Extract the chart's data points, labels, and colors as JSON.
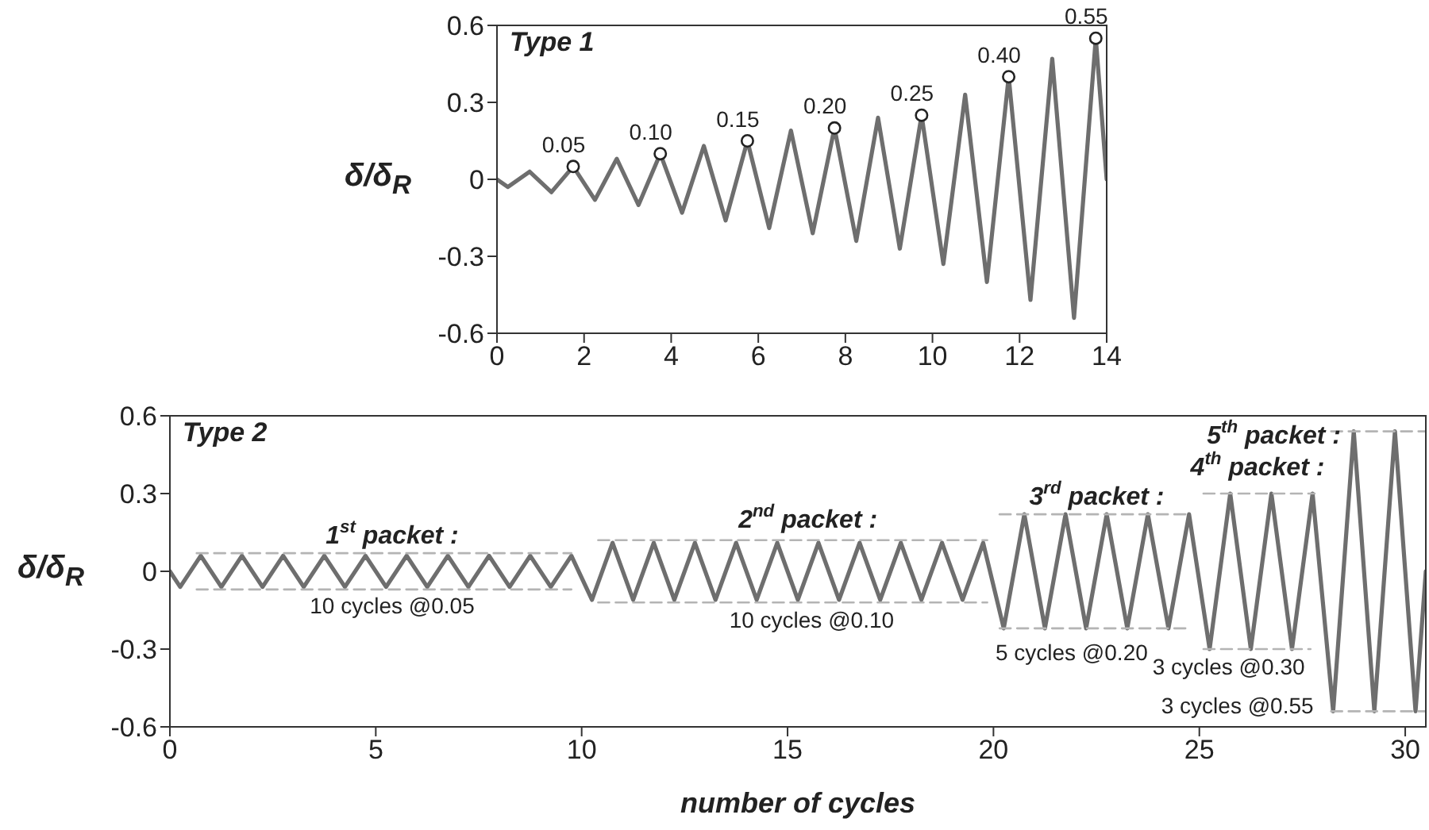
{
  "chart_data": [
    {
      "type": "line",
      "title": "Type 1",
      "ylabel": "δ/δ$_{R}$",
      "xlim": [
        0,
        14
      ],
      "xticks": [
        0,
        2,
        4,
        6,
        8,
        10,
        12,
        14
      ],
      "ylim": [
        -0.6,
        0.6
      ],
      "yticks": [
        -0.6,
        -0.3,
        0,
        0.3,
        0.6
      ],
      "series": [
        {
          "type": "line",
          "color": "#6e6e6e",
          "marker": "none",
          "x": [
            0,
            0.25,
            0.75,
            1.25,
            1.75,
            2.25,
            2.75,
            3.25,
            3.75,
            4.25,
            4.75,
            5.25,
            5.75,
            6.25,
            6.75,
            7.25,
            7.75,
            8.25,
            8.75,
            9.25,
            9.75,
            10.25,
            10.75,
            11.25,
            11.75,
            12.25,
            12.75,
            13.25,
            13.75,
            14
          ],
          "values": [
            0,
            -0.03,
            0.03,
            -0.05,
            0.05,
            -0.08,
            0.08,
            -0.1,
            0.1,
            -0.13,
            0.13,
            -0.16,
            0.15,
            -0.19,
            0.19,
            -0.21,
            0.2,
            -0.24,
            0.24,
            -0.27,
            0.25,
            -0.33,
            0.33,
            -0.4,
            0.4,
            -0.47,
            0.47,
            -0.54,
            0.55,
            0
          ]
        },
        {
          "type": "scatter",
          "color": "#222222",
          "marker": "circle",
          "x": [
            1.75,
            3.75,
            5.75,
            7.75,
            9.75,
            11.75,
            13.75
          ],
          "values": [
            0.05,
            0.1,
            0.15,
            0.2,
            0.25,
            0.4,
            0.55
          ],
          "value_labels": [
            "0.05",
            "0.10",
            "0.15",
            "0.20",
            "0.25",
            "0.40",
            "0.55"
          ]
        }
      ]
    },
    {
      "type": "line",
      "title": "Type 2",
      "xlabel": "number of cycles",
      "ylabel": "δ/δ$_{R}$",
      "xlim": [
        0,
        30.5
      ],
      "xticks": [
        0,
        5,
        10,
        15,
        20,
        25,
        30
      ],
      "ylim": [
        -0.6,
        0.6
      ],
      "yticks": [
        -0.6,
        -0.3,
        0,
        0.3,
        0.6
      ],
      "series": [
        {
          "type": "line",
          "color": "#6e6e6e",
          "marker": "none",
          "x": [
            0,
            0.25,
            0.75,
            1.25,
            1.75,
            2.25,
            2.75,
            3.25,
            3.75,
            4.25,
            4.75,
            5.25,
            5.75,
            6.25,
            6.75,
            7.25,
            7.75,
            8.25,
            8.75,
            9.25,
            9.75,
            10.25,
            10.75,
            11.25,
            11.75,
            12.25,
            12.75,
            13.25,
            13.75,
            14.25,
            14.75,
            15.25,
            15.75,
            16.25,
            16.75,
            17.25,
            17.75,
            18.25,
            18.75,
            19.25,
            19.75,
            20.25,
            20.75,
            21.25,
            21.75,
            22.25,
            22.75,
            23.25,
            23.75,
            24.25,
            24.75,
            25.25,
            25.75,
            26.25,
            26.75,
            27.25,
            27.75,
            28.25,
            28.75,
            29.25,
            29.75,
            30.25,
            30.5
          ],
          "values": [
            0,
            -0.06,
            0.06,
            -0.06,
            0.06,
            -0.06,
            0.06,
            -0.06,
            0.06,
            -0.06,
            0.06,
            -0.06,
            0.06,
            -0.06,
            0.06,
            -0.06,
            0.06,
            -0.06,
            0.06,
            -0.06,
            0.06,
            -0.11,
            0.11,
            -0.11,
            0.11,
            -0.11,
            0.11,
            -0.11,
            0.11,
            -0.11,
            0.11,
            -0.11,
            0.11,
            -0.11,
            0.11,
            -0.11,
            0.11,
            -0.11,
            0.11,
            -0.11,
            0.11,
            -0.22,
            0.22,
            -0.22,
            0.22,
            -0.22,
            0.22,
            -0.22,
            0.22,
            -0.22,
            0.22,
            -0.3,
            0.3,
            -0.3,
            0.3,
            -0.3,
            0.3,
            -0.54,
            0.54,
            -0.54,
            0.54,
            -0.54,
            0
          ]
        },
        {
          "type": "line",
          "color": "#b4b4b4",
          "line_style": "dashed",
          "marker": "none",
          "x": [
            0.65,
            9.75
          ],
          "values": [
            0.07,
            0.07
          ]
        },
        {
          "type": "line",
          "color": "#b4b4b4",
          "line_style": "dashed",
          "marker": "none",
          "x": [
            0.65,
            9.75
          ],
          "values": [
            -0.07,
            -0.07
          ]
        },
        {
          "type": "line",
          "color": "#b4b4b4",
          "line_style": "dashed",
          "marker": "none",
          "x": [
            10.4,
            19.85
          ],
          "values": [
            0.12,
            0.12
          ]
        },
        {
          "type": "line",
          "color": "#b4b4b4",
          "line_style": "dashed",
          "marker": "none",
          "x": [
            10.4,
            19.85
          ],
          "values": [
            -0.12,
            -0.12
          ]
        },
        {
          "type": "line",
          "color": "#b4b4b4",
          "line_style": "dashed",
          "marker": "none",
          "x": [
            20.15,
            24.8
          ],
          "values": [
            0.22,
            0.22
          ]
        },
        {
          "type": "line",
          "color": "#b4b4b4",
          "line_style": "dashed",
          "marker": "none",
          "x": [
            20.15,
            24.7
          ],
          "values": [
            -0.22,
            -0.22
          ]
        },
        {
          "type": "line",
          "color": "#b4b4b4",
          "line_style": "dashed",
          "marker": "none",
          "x": [
            25.1,
            27.8
          ],
          "values": [
            0.3,
            0.3
          ]
        },
        {
          "type": "line",
          "color": "#b4b4b4",
          "line_style": "dashed",
          "marker": "none",
          "x": [
            25.1,
            27.7
          ],
          "values": [
            -0.3,
            -0.3
          ]
        },
        {
          "type": "line",
          "color": "#b4b4b4",
          "line_style": "dashed",
          "marker": "none",
          "x": [
            28.2,
            30.5
          ],
          "values": [
            0.54,
            0.54
          ]
        },
        {
          "type": "line",
          "color": "#b4b4b4",
          "line_style": "dashed",
          "marker": "none",
          "x": [
            28.2,
            30.5
          ],
          "values": [
            -0.54,
            -0.54
          ]
        }
      ],
      "annotations": [
        "1$^{st}$ packet :",
        "10 cycles @0.05",
        "2$^{nd}$ packet :",
        "10 cycles @0.10",
        "3$^{rd}$ packet :",
        "5 cycles @0.20",
        "4$^{th}$ packet :",
        "5$^{th}$ packet :",
        "3 cycles @0.30",
        "3 cycles @0.55"
      ]
    }
  ]
}
